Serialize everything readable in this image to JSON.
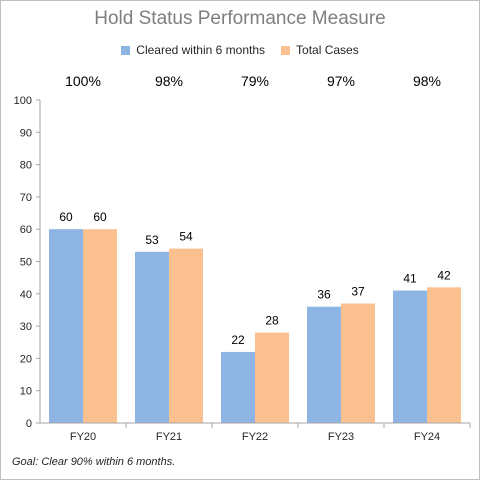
{
  "chart_data": {
    "type": "bar",
    "title": "Hold Status Performance Measure",
    "categories": [
      "FY20",
      "FY21",
      "FY22",
      "FY23",
      "FY24"
    ],
    "series": [
      {
        "name": "Cleared within 6 months",
        "values": [
          60,
          53,
          22,
          36,
          41
        ],
        "color": "#8eb4e3"
      },
      {
        "name": "Total Cases",
        "values": [
          60,
          54,
          28,
          37,
          42
        ],
        "color": "#fac090"
      }
    ],
    "percentages": [
      "100%",
      "98%",
      "79%",
      "97%",
      "98%"
    ],
    "ylim": [
      0,
      100
    ],
    "yticks": [
      0,
      10,
      20,
      30,
      40,
      50,
      60,
      70,
      80,
      90,
      100
    ],
    "xlabel": "",
    "ylabel": "",
    "grid": false,
    "legend_position": "top-center",
    "footnote": "Goal:  Clear 90% within 6 months."
  }
}
